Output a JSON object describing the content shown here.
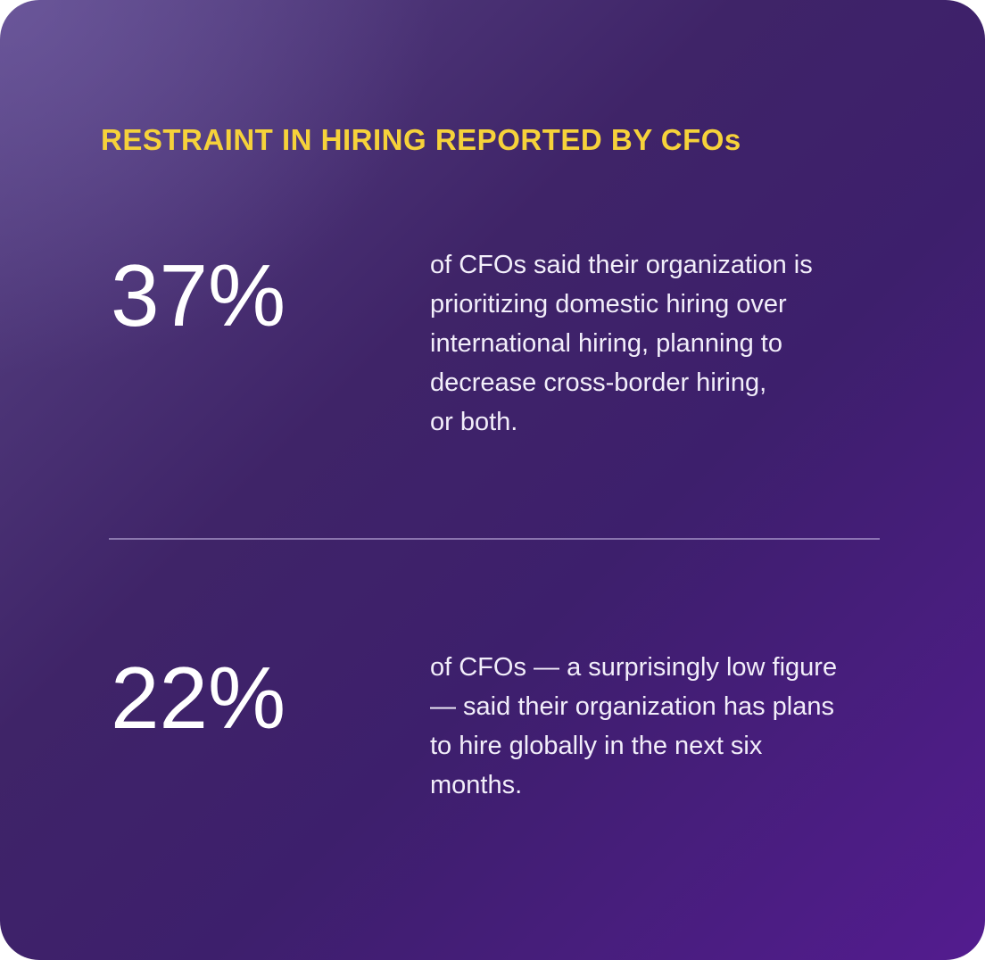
{
  "title": "RESTRAINT IN HIRING REPORTED BY CFOs",
  "stats": [
    {
      "value": "37%",
      "lines": [
        "of CFOs said their organization is",
        "prioritizing domestic hiring over",
        "international hiring, planning to",
        "decrease cross-border hiring,",
        "or both."
      ]
    },
    {
      "value": "22%",
      "lines": [
        "of CFOs — a surprisingly low figure",
        "— said their organization has plans",
        "to hire globally in the next six",
        "months."
      ]
    }
  ]
}
